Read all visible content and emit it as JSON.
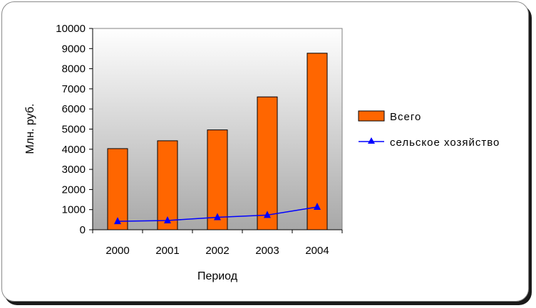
{
  "chart_data": {
    "type": "bar",
    "categories": [
      "2000",
      "2001",
      "2002",
      "2003",
      "2004"
    ],
    "series": [
      {
        "name": "Всего",
        "kind": "bar",
        "color": "#ff6600",
        "values": [
          4030,
          4420,
          4960,
          6600,
          8770
        ]
      },
      {
        "name": "сельское хозяйство",
        "kind": "line",
        "color": "#0000ff",
        "marker": "triangle",
        "values": [
          420,
          460,
          620,
          730,
          1130
        ]
      }
    ],
    "xlabel": "Период",
    "ylabel": "Млн. руб.",
    "ylim": [
      0,
      10000
    ],
    "yticks": [
      0,
      1000,
      2000,
      3000,
      4000,
      5000,
      6000,
      7000,
      8000,
      9000,
      10000
    ],
    "legend": "right",
    "plot_background": "gradient light gray to dark gray"
  }
}
